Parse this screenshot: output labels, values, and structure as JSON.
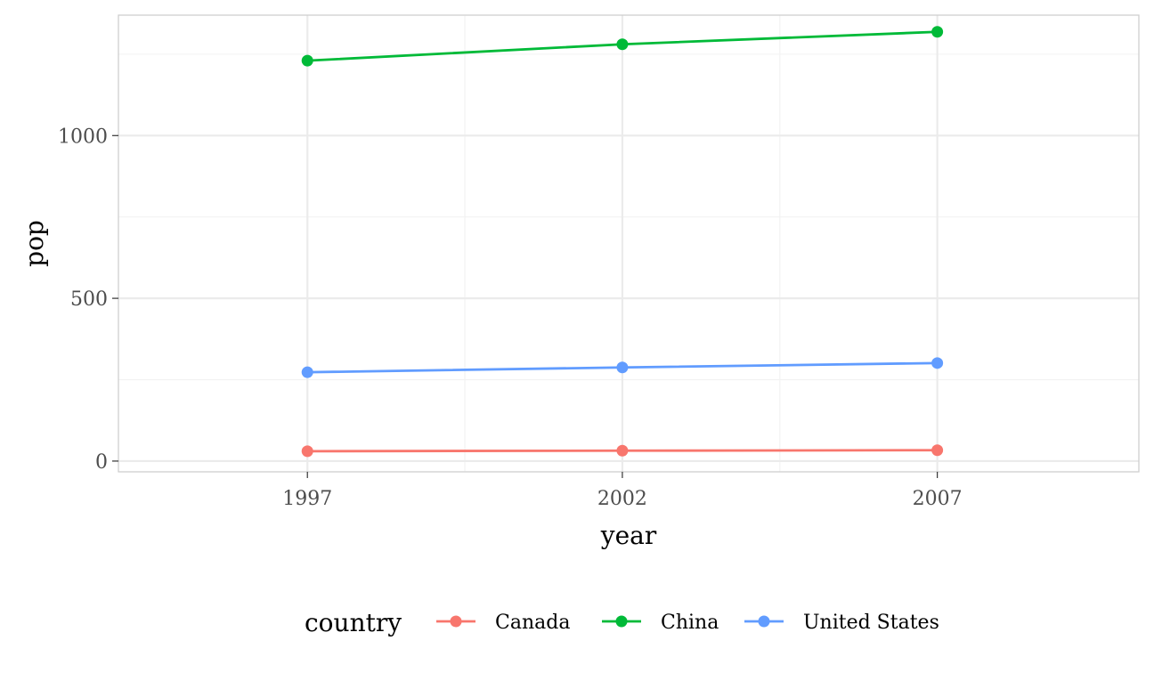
{
  "chart_data": {
    "type": "line",
    "x": [
      1997,
      2002,
      2007
    ],
    "x_tick_labels": [
      "1997",
      "2002",
      "2007"
    ],
    "y_ticks": [
      0,
      500,
      1000
    ],
    "y_tick_labels": [
      "0",
      "500",
      "1000"
    ],
    "xlabel": "year",
    "ylabel": "pop",
    "xlim": [
      1994,
      2010.2
    ],
    "ylim": [
      -33,
      1370
    ],
    "grid": true,
    "legend": {
      "title": "country",
      "position": "bottom"
    },
    "series": [
      {
        "name": "Canada",
        "color": "#F8766D",
        "values": [
          30.3,
          31.9,
          33.4
        ]
      },
      {
        "name": "China",
        "color": "#00BA38",
        "values": [
          1230.1,
          1280.4,
          1318.7
        ]
      },
      {
        "name": "United States",
        "color": "#619CFF",
        "values": [
          272.9,
          287.7,
          301.1
        ]
      }
    ]
  }
}
